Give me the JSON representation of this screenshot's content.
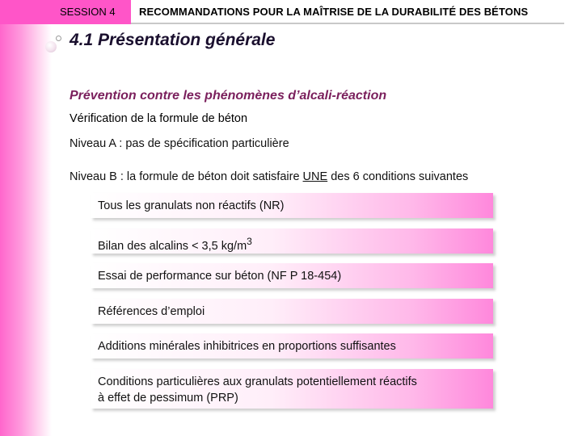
{
  "header": {
    "session": "SESSION 4",
    "title": "RECOMMANDATIONS POUR LA MAÎTRISE DE LA DURABILITÉ DES BÉTONS"
  },
  "slide": {
    "title": "4.1 Présentation générale",
    "section_heading": "Prévention contre les phénomènes d’alcali-réaction",
    "sub_heading": "Vérification de la formule de béton",
    "level_a": "Niveau A : pas de spécification particulière",
    "level_b_before": "Niveau B : la formule de  béton doit satisfaire ",
    "level_b_emphasis": "UNE",
    "level_b_after": " des 6 conditions suivantes"
  },
  "conditions": [
    "Tous les granulats non réactifs (NR)",
    "Bilan des alcalins < 3,5 kg/m",
    "Essai de performance sur béton (NF P 18-454)",
    "Références d’emploi",
    "Additions minérales inhibitrices en proportions suffisantes",
    "Conditions particulières aux granulats potentiellement réactifs",
    "à effet de pessimum (PRP)"
  ],
  "condition_2_superscript": "3"
}
